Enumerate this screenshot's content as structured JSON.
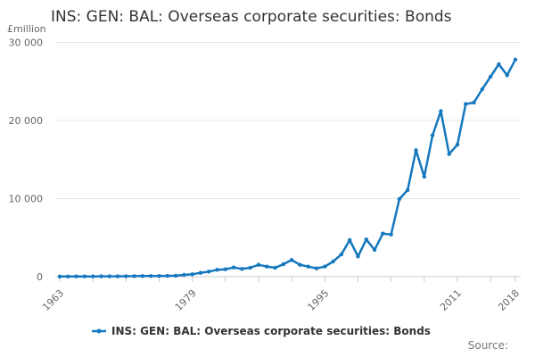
{
  "title": "INS: GEN: BAL: Overseas corporate securities: Bonds",
  "y_axis_unit": "£million",
  "source_label": "Source:",
  "legend": {
    "label": "INS: GEN: BAL: Overseas corporate securities: Bonds",
    "marker": "line-dot-icon"
  },
  "colors": {
    "line": "#1478be",
    "grid": "#e6e6e6",
    "axis": "#c9ccd1",
    "tick": "#c9ccd1",
    "tick_text": "#666666",
    "title_text": "#333333",
    "source_text": "#767676"
  },
  "chart_data": {
    "type": "line",
    "title": "INS: GEN: BAL: Overseas corporate securities: Bonds",
    "xlabel": "",
    "ylabel": "£million",
    "ylim": [
      0,
      30000
    ],
    "yticks": [
      0,
      10000,
      20000,
      30000
    ],
    "ytick_labels": [
      "0",
      "10 000",
      "20 000",
      "30 000"
    ],
    "xtick_years": [
      1963,
      1967,
      1971,
      1975,
      1979,
      1983,
      1987,
      1991,
      1995,
      1999,
      2003,
      2007,
      2011,
      2015,
      2018
    ],
    "xtick_labeled_years": [
      "1963",
      "1979",
      "1995",
      "2011",
      "2018"
    ],
    "grid": true,
    "legend_position": "bottom",
    "x": [
      1963,
      1964,
      1965,
      1966,
      1967,
      1968,
      1969,
      1970,
      1971,
      1972,
      1973,
      1974,
      1975,
      1976,
      1977,
      1978,
      1979,
      1980,
      1981,
      1982,
      1983,
      1984,
      1985,
      1986,
      1987,
      1988,
      1989,
      1990,
      1991,
      1992,
      1993,
      1994,
      1995,
      1996,
      1997,
      1998,
      1999,
      2000,
      2001,
      2002,
      2003,
      2004,
      2005,
      2006,
      2007,
      2008,
      2009,
      2010,
      2011,
      2012,
      2013,
      2014,
      2015,
      2016,
      2017,
      2018
    ],
    "series": [
      {
        "name": "INS: GEN: BAL: Overseas corporate securities: Bonds",
        "values": [
          20,
          25,
          30,
          30,
          35,
          40,
          45,
          50,
          55,
          65,
          75,
          80,
          90,
          100,
          120,
          230,
          310,
          490,
          650,
          880,
          950,
          1180,
          990,
          1140,
          1520,
          1290,
          1140,
          1600,
          2140,
          1520,
          1290,
          1060,
          1290,
          1940,
          2860,
          4690,
          2600,
          4770,
          3430,
          5520,
          5400,
          9940,
          11100,
          16200,
          12800,
          18100,
          21200,
          15700,
          16900,
          22100,
          22300,
          24000,
          25600,
          27200,
          25800,
          27800
        ]
      }
    ]
  }
}
